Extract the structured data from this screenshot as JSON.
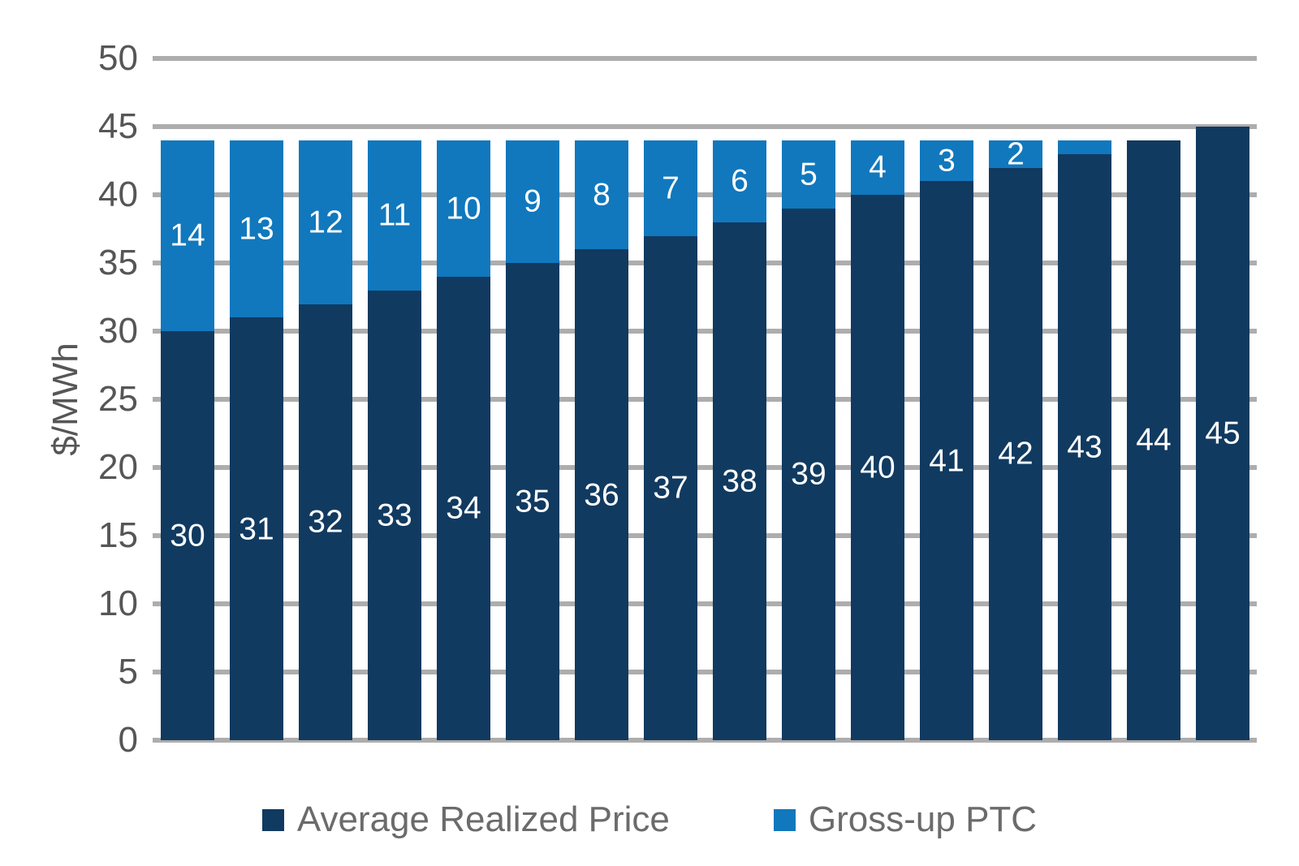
{
  "chart_data": {
    "type": "bar",
    "stacked": true,
    "title": "",
    "xlabel": "",
    "ylabel": "$/MWh",
    "ylim": [
      0,
      50
    ],
    "ytick_step": 5,
    "ytick_labels": [
      "0",
      "5",
      "10",
      "15",
      "20",
      "25",
      "30",
      "35",
      "40",
      "45",
      "50"
    ],
    "x_axis_labels_shown": false,
    "grid": true,
    "legend_position": "bottom",
    "n_bars": 16,
    "series": [
      {
        "name": "Average Realized Price",
        "color": "#113A60",
        "values": [
          30,
          31,
          32,
          33,
          34,
          35,
          36,
          37,
          38,
          39,
          40,
          41,
          42,
          43,
          44,
          45
        ]
      },
      {
        "name": "Gross-up PTC",
        "color": "#1178BD",
        "values": [
          14,
          13,
          12,
          11,
          10,
          9,
          8,
          7,
          6,
          5,
          4,
          3,
          2,
          1,
          0,
          0
        ]
      }
    ],
    "bar_labels_shown_min_value": 2,
    "bar_label_color": "#FFFFFF"
  },
  "axis_style": {
    "gridline_color": "#ADADAD",
    "tick_label_color": "#565656",
    "axis_title_color": "#565656"
  },
  "legend": {
    "text_color": "#6B6B6B",
    "items": [
      {
        "label": "Average Realized Price",
        "color": "#113A60"
      },
      {
        "label": "Gross-up PTC",
        "color": "#1178BD"
      }
    ]
  }
}
